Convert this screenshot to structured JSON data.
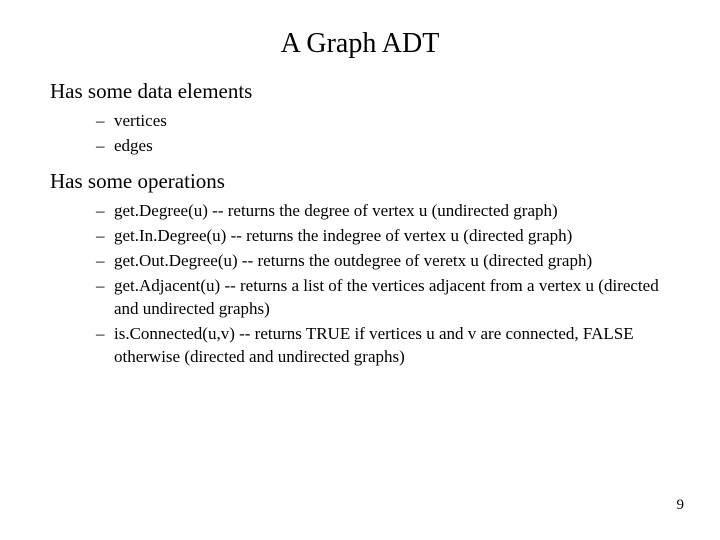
{
  "title": "A Graph ADT",
  "section1": {
    "heading": "Has some data elements",
    "items": [
      "vertices",
      "edges"
    ]
  },
  "section2": {
    "heading": "Has some operations",
    "items": [
      "get.Degree(u) -- returns the degree of vertex u (undirected graph)",
      "get.In.Degree(u) -- returns the indegree of vertex u (directed graph)",
      "get.Out.Degree(u) -- returns the outdegree of veretx u (directed graph)",
      "get.Adjacent(u) -- returns a list of the vertices adjacent from a vertex u (directed and undirected graphs)",
      "is.Connected(u,v)  -- returns TRUE if vertices u and v are connected, FALSE otherwise (directed and undirected graphs)"
    ]
  },
  "page_number": "9"
}
